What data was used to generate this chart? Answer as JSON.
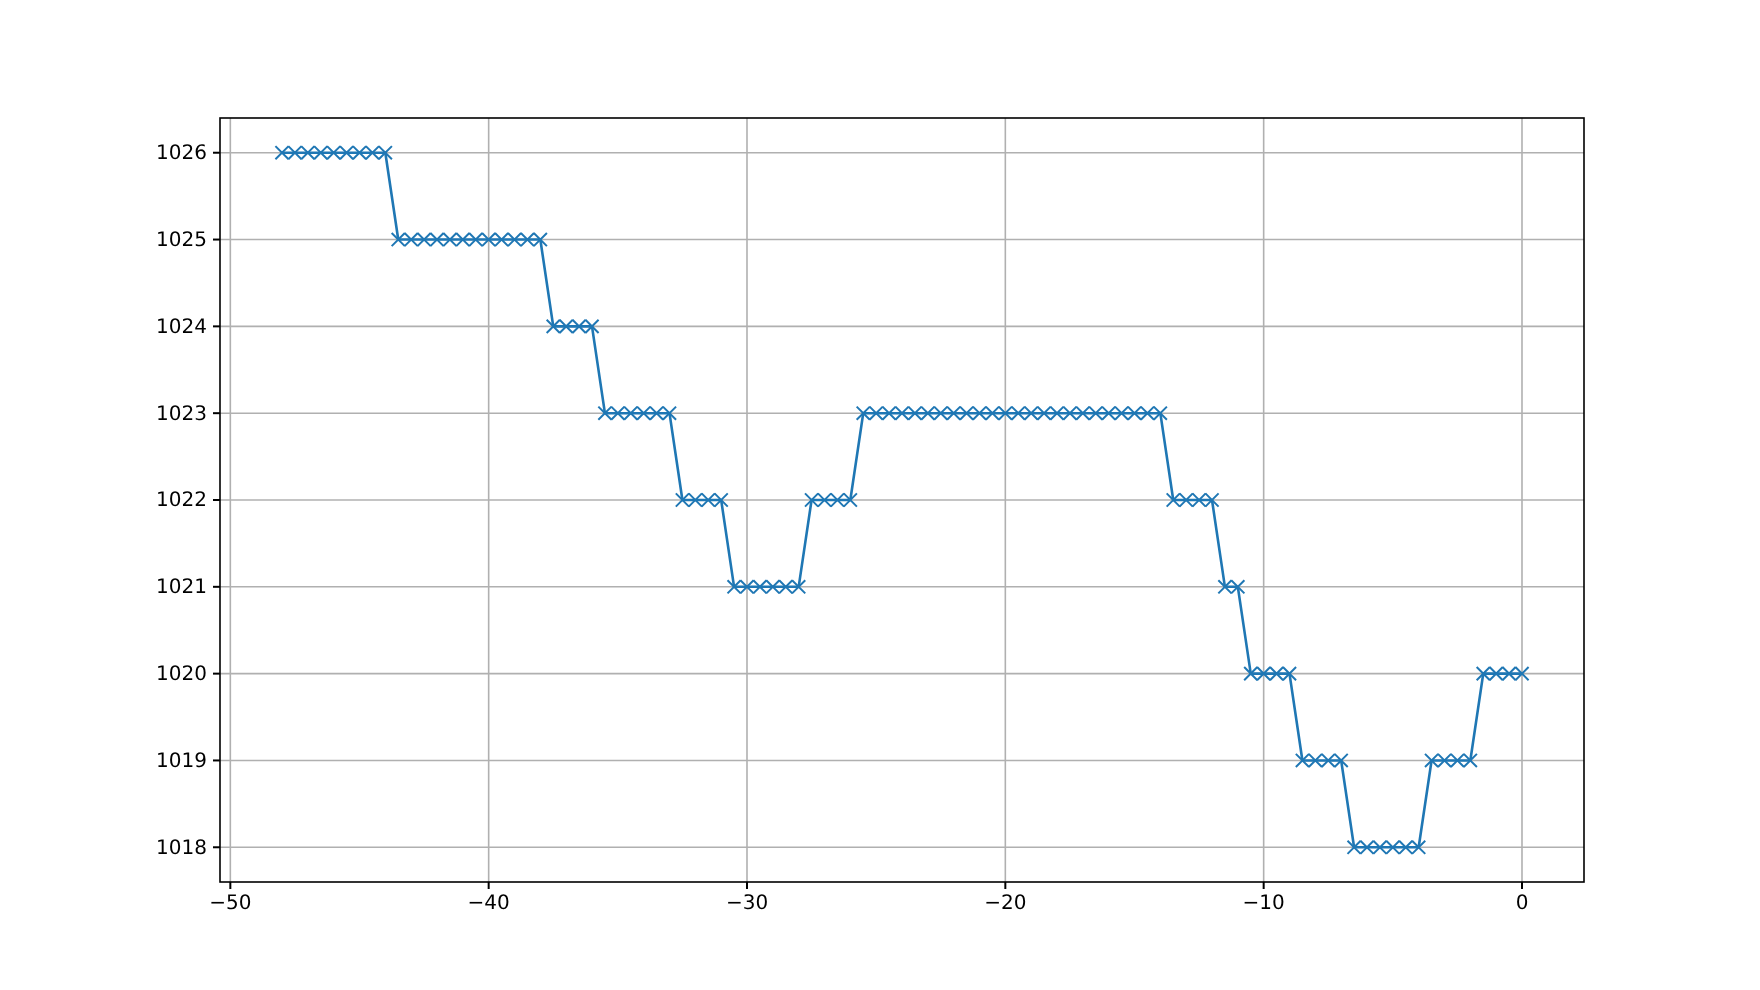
{
  "chart_data": {
    "type": "line",
    "marker": "cross",
    "grid": true,
    "xlim": [
      -50.4,
      2.4
    ],
    "xticks": [
      {
        "value": -50,
        "label": "−50"
      },
      {
        "value": -40,
        "label": "−40"
      },
      {
        "value": -30,
        "label": "−30"
      },
      {
        "value": -20,
        "label": "−20"
      },
      {
        "value": -10,
        "label": "−10"
      },
      0
    ],
    "ylim": [
      1017.6,
      1026.4
    ],
    "yticks": [
      1018,
      1019,
      1020,
      1021,
      1022,
      1023,
      1024,
      1025,
      1026
    ],
    "x": [
      -48,
      -47.5,
      -47,
      -46.5,
      -46,
      -45.5,
      -45,
      -44.5,
      -44,
      -43.5,
      -43,
      -42.5,
      -42,
      -41.5,
      -41,
      -40.5,
      -40,
      -39.5,
      -39,
      -38.5,
      -38,
      -37.5,
      -37,
      -36.5,
      -36,
      -35.5,
      -35,
      -34.5,
      -34,
      -33.5,
      -33,
      -32.5,
      -32,
      -31.5,
      -31,
      -30.5,
      -30,
      -29.5,
      -29,
      -28.5,
      -28,
      -27.5,
      -27,
      -26.5,
      -26,
      -25.5,
      -25,
      -24.5,
      -24,
      -23.5,
      -23,
      -22.5,
      -22,
      -21.5,
      -21,
      -20.5,
      -20,
      -19.5,
      -19,
      -18.5,
      -18,
      -17.5,
      -17,
      -16.5,
      -16,
      -15.5,
      -15,
      -14.5,
      -14,
      -13.5,
      -13,
      -12.5,
      -12,
      -11.5,
      -11,
      -10.5,
      -10,
      -9.5,
      -9,
      -8.5,
      -8,
      -7.5,
      -7,
      -6.5,
      -6,
      -5.5,
      -5,
      -4.5,
      -4,
      -3.5,
      -3,
      -2.5,
      -2,
      -1.5,
      -1,
      -0.5,
      0
    ],
    "series": [
      {
        "color": "#1f77b4",
        "values": [
          1026,
          1026,
          1026,
          1026,
          1026,
          1026,
          1026,
          1026,
          1026,
          1025,
          1025,
          1025,
          1025,
          1025,
          1025,
          1025,
          1025,
          1025,
          1025,
          1025,
          1025,
          1024,
          1024,
          1024,
          1024,
          1023,
          1023,
          1023,
          1023,
          1023,
          1023,
          1022,
          1022,
          1022,
          1022,
          1021,
          1021,
          1021,
          1021,
          1021,
          1021,
          1022,
          1022,
          1022,
          1022,
          1023,
          1023,
          1023,
          1023,
          1023,
          1023,
          1023,
          1023,
          1023,
          1023,
          1023,
          1023,
          1023,
          1023,
          1023,
          1023,
          1023,
          1023,
          1023,
          1023,
          1023,
          1023,
          1023,
          1023,
          1022,
          1022,
          1022,
          1022,
          1021,
          1021,
          1020,
          1020,
          1020,
          1020,
          1019,
          1019,
          1019,
          1019,
          1018,
          1018,
          1018,
          1018,
          1018,
          1018,
          1019,
          1019,
          1019,
          1019,
          1020,
          1020,
          1020,
          1020
        ]
      }
    ]
  }
}
